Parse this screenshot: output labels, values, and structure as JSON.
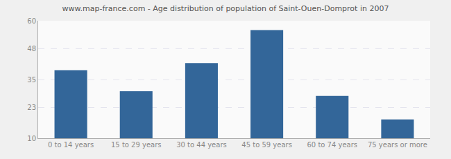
{
  "chart_data": {
    "type": "bar",
    "title": "www.map-france.com - Age distribution of population of Saint-Ouen-Domprot in 2007",
    "categories": [
      "0 to 14 years",
      "15 to 29 years",
      "30 to 44 years",
      "45 to 59 years",
      "60 to 74 years",
      "75 years or more"
    ],
    "values": [
      39,
      30,
      42,
      56,
      28,
      18
    ],
    "color": "#336699",
    "ylim": [
      10,
      60
    ],
    "yticks": [
      10,
      23,
      35,
      48,
      60
    ],
    "grid": true
  }
}
